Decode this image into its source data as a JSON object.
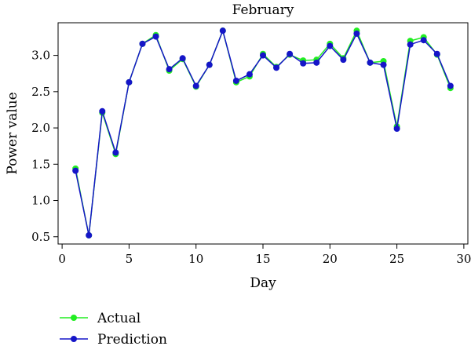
{
  "chart_data": {
    "type": "line",
    "title": "February",
    "xlabel": "Day",
    "ylabel": "Power value",
    "xlim": [
      -0.3,
      30.3
    ],
    "ylim": [
      0.4,
      3.45
    ],
    "xticks": [
      0,
      5,
      10,
      15,
      20,
      25,
      30
    ],
    "yticks": [
      0.5,
      1.0,
      1.5,
      2.0,
      2.5,
      3.0
    ],
    "ytick_labels": [
      "0.5",
      "1.0",
      "1.5",
      "2.0",
      "2.5",
      "3.0"
    ],
    "grid": false,
    "legend_position": "bottom-left, outside plot",
    "x": [
      1,
      2,
      3,
      4,
      5,
      6,
      7,
      8,
      9,
      10,
      11,
      12,
      13,
      14,
      15,
      16,
      17,
      18,
      19,
      20,
      21,
      22,
      23,
      24,
      25,
      26,
      27,
      28,
      29
    ],
    "series": [
      {
        "name": "Actual",
        "color": "#22ee22",
        "values": [
          1.44,
          0.52,
          2.21,
          1.64,
          2.63,
          3.16,
          3.28,
          2.79,
          2.95,
          2.57,
          2.87,
          3.34,
          2.63,
          2.71,
          3.02,
          2.84,
          3.01,
          2.93,
          2.94,
          3.16,
          2.96,
          3.34,
          2.9,
          2.92,
          2.02,
          3.2,
          3.25,
          3.01,
          2.55
        ]
      },
      {
        "name": "Prediction",
        "color": "#1515c8",
        "values": [
          1.41,
          0.52,
          2.23,
          1.66,
          2.63,
          3.16,
          3.26,
          2.81,
          2.96,
          2.58,
          2.87,
          3.34,
          2.65,
          2.74,
          3.0,
          2.83,
          3.02,
          2.89,
          2.9,
          3.13,
          2.94,
          3.3,
          2.9,
          2.87,
          1.99,
          3.15,
          3.21,
          3.02,
          2.58
        ]
      }
    ]
  }
}
